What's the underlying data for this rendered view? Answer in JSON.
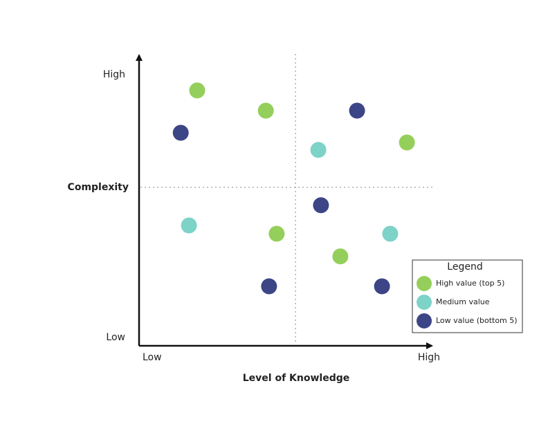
{
  "chart_data": {
    "type": "scatter",
    "x_label": "Level of Knowledge",
    "y_label": "Complexity",
    "xlim": [
      0,
      100
    ],
    "ylim": [
      0,
      100
    ],
    "xticks": [
      {
        "value": 0,
        "label": "Low"
      },
      {
        "value": 100,
        "label": "High"
      }
    ],
    "yticks": [
      {
        "value": 0,
        "label": "Low"
      },
      {
        "value": 100,
        "label": "High"
      }
    ],
    "quadrant_x": 53.3,
    "quadrant_y": 57.3,
    "legend_title": "Legend",
    "legend_position": "lower right",
    "series": [
      {
        "name": "High value (top 5)",
        "color": "#95cf5b",
        "x": [
          19.8,
          43.2,
          91.3,
          46.9,
          68.6
        ],
        "y": [
          92.3,
          85,
          73.5,
          40.5,
          32.3
        ]
      },
      {
        "name": "Medium value",
        "color": "#7dd3c8",
        "x": [
          61.1,
          17,
          85.6
        ],
        "y": [
          70.8,
          43.5,
          40.5
        ]
      },
      {
        "name": "Low value (bottom 5)",
        "color": "#3c4585",
        "x": [
          74.3,
          14.2,
          62,
          44.3,
          82.8
        ],
        "y": [
          85,
          77,
          50.8,
          21.5,
          21.5
        ]
      }
    ]
  }
}
